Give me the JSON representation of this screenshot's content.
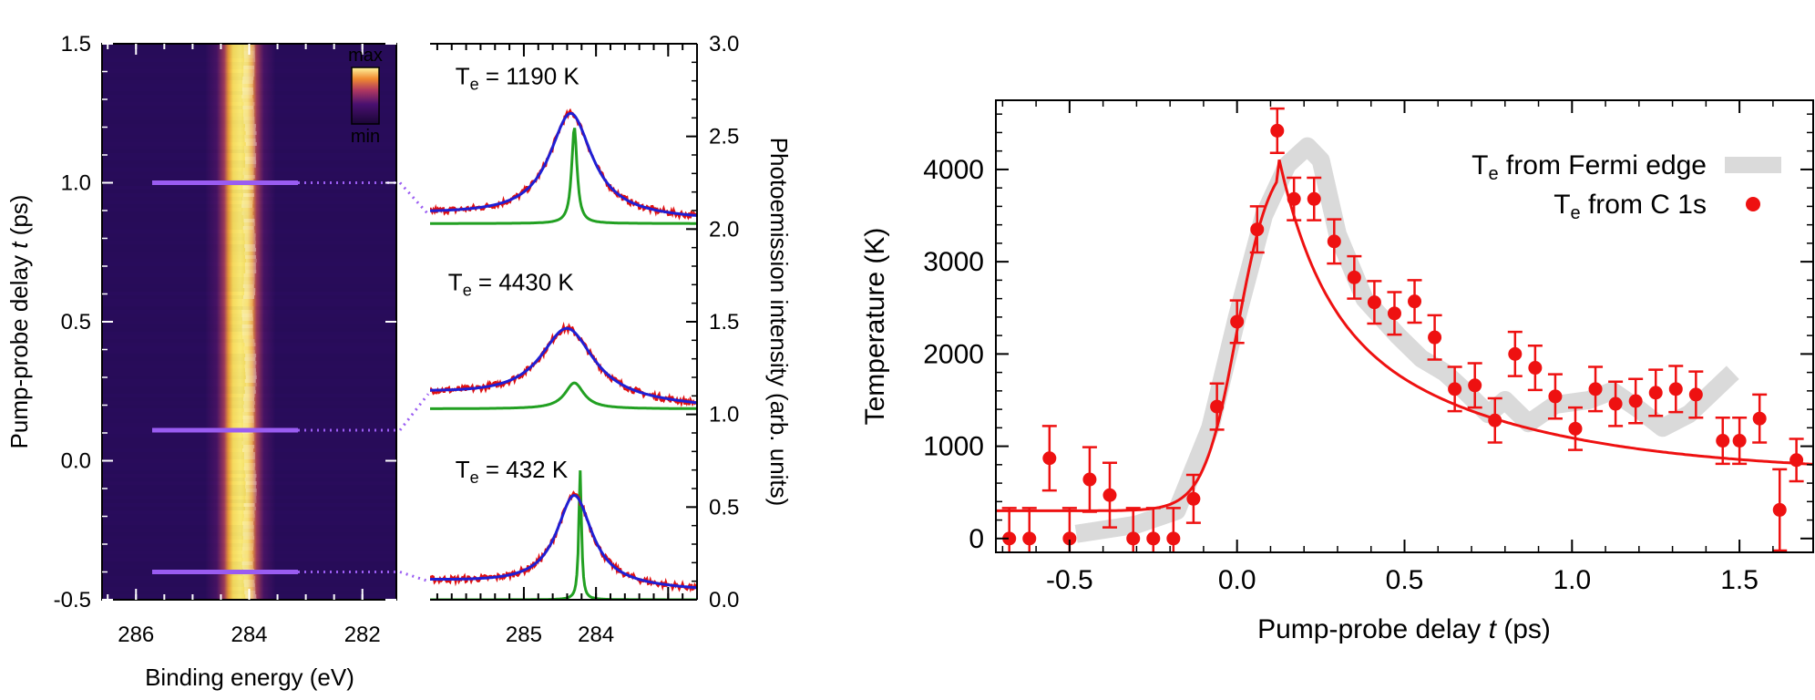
{
  "chart_data": [
    {
      "type": "heatmap",
      "xlabel": "Binding energy (eV)",
      "ylabel": "Pump-probe delay t (ps)",
      "xlim": [
        286.6,
        281.4
      ],
      "ylim": [
        -0.5,
        1.5
      ],
      "x_ticks": [
        286,
        284,
        282
      ],
      "x_tick_labels": [
        "286",
        "284",
        "282"
      ],
      "y_ticks": [
        -0.5,
        0.0,
        0.5,
        1.0,
        1.5
      ],
      "y_tick_labels": [
        "-0.5",
        "0.0",
        "0.5",
        "1.0",
        "1.5"
      ],
      "colorbar": {
        "max_label": "max",
        "min_label": "min"
      },
      "peak_center_eV": 284.0,
      "cut_delays_ps": [
        1.0,
        0.11,
        -0.4
      ],
      "colors": {
        "background": "#2a0d5e",
        "peak": "#ffec60",
        "cut_line": "#9a5cf2"
      }
    },
    {
      "type": "line",
      "ylabel": "Photoemission intensity (arb. units)",
      "xlim": [
        286.3,
        282.6
      ],
      "ylim": [
        0.0,
        3.0
      ],
      "x_ticks": [
        285,
        284,
        283
      ],
      "x_tick_labels": [
        "285",
        "284",
        ""
      ],
      "y_ticks": [
        0.0,
        0.5,
        1.0,
        1.5,
        2.0,
        2.5,
        3.0
      ],
      "y_tick_labels": [
        "0.0",
        "0.5",
        "1.0",
        "1.5",
        "2.0",
        "2.5",
        "3.0"
      ],
      "annotations": [
        "T<sub>e</sub> = 1190 K",
        "T<sub>e</sub> = 4430 K",
        "T<sub>e</sub> = 432 K"
      ],
      "annotation_parts": [
        {
          "prefix": "T",
          "sub": "e",
          "suffix": " = 1190 K"
        },
        {
          "prefix": "T",
          "sub": "e",
          "suffix": " = 4430 K"
        },
        {
          "prefix": "T",
          "sub": "e",
          "suffix": " = 432 K"
        }
      ],
      "spectra": [
        {
          "offset": 2.0,
          "bg_left": 0.08,
          "bg_right": 0.05,
          "fit_amp": 0.56,
          "fit_center": 284.35,
          "fit_gamma": 0.36,
          "narrow_amp": 0.52,
          "narrow_center": 284.3,
          "narrow_gamma": 0.045,
          "narrow_base": 0.03
        },
        {
          "offset": 1.0,
          "bg_left": 0.11,
          "bg_right": 0.04,
          "fit_amp": 0.39,
          "fit_center": 284.4,
          "fit_gamma": 0.45,
          "narrow_amp": 0.14,
          "narrow_center": 284.3,
          "narrow_gamma": 0.16,
          "narrow_base": 0.03
        },
        {
          "offset": 0.0,
          "bg_left": 0.1,
          "bg_right": 0.05,
          "fit_amp": 0.49,
          "fit_center": 284.3,
          "fit_gamma": 0.3,
          "narrow_amp": 0.7,
          "narrow_center": 284.22,
          "narrow_gamma": 0.022,
          "narrow_base": 0.0
        }
      ],
      "colors": {
        "data": "#e01010",
        "fit": "#1f1fd4",
        "component": "#22a022"
      }
    },
    {
      "type": "scatter",
      "xlabel": "Pump-probe delay t (ps)",
      "ylabel": "Temperature (K)",
      "xlim": [
        -0.72,
        1.72
      ],
      "ylim": [
        -150,
        4750
      ],
      "x_ticks": [
        -0.5,
        0.0,
        0.5,
        1.0,
        1.5
      ],
      "x_tick_labels": [
        "-0.5",
        "0.0",
        "0.5",
        "1.0",
        "1.5"
      ],
      "y_ticks": [
        0,
        1000,
        2000,
        3000,
        4000
      ],
      "y_tick_labels": [
        "0",
        "1000",
        "2000",
        "3000",
        "4000"
      ],
      "legend": [
        {
          "prefix": "T",
          "sub": "e",
          "suffix": " from Fermi edge"
        },
        {
          "prefix": "T",
          "sub": "e",
          "suffix": " from C 1s"
        }
      ],
      "legend_position": "top-right",
      "series": [
        {
          "marker": "point",
          "x": [
            -0.68,
            -0.62,
            -0.56,
            -0.5,
            -0.44,
            -0.38,
            -0.31,
            -0.25,
            -0.19,
            -0.13,
            -0.06,
            0.0,
            0.06,
            0.12,
            0.17,
            0.23,
            0.29,
            0.35,
            0.41,
            0.47,
            0.53,
            0.59,
            0.65,
            0.71,
            0.77,
            0.83,
            0.89,
            0.95,
            1.01,
            1.07,
            1.13,
            1.19,
            1.25,
            1.31,
            1.37,
            1.45,
            1.5,
            1.56,
            1.62,
            1.67
          ],
          "y": [
            0,
            0,
            870,
            0,
            640,
            470,
            0,
            0,
            0,
            430,
            1430,
            2350,
            3350,
            4420,
            3680,
            3680,
            3220,
            2830,
            2560,
            2440,
            2570,
            2180,
            1620,
            1660,
            1280,
            2000,
            1850,
            1540,
            1190,
            1620,
            1460,
            1490,
            1580,
            1620,
            1560,
            1060,
            1060,
            1300,
            310,
            850
          ],
          "err": [
            330,
            330,
            350,
            330,
            350,
            350,
            330,
            330,
            330,
            260,
            250,
            230,
            250,
            240,
            230,
            230,
            240,
            230,
            230,
            230,
            230,
            240,
            240,
            240,
            240,
            240,
            240,
            240,
            230,
            240,
            240,
            240,
            250,
            250,
            250,
            250,
            250,
            260,
            440,
            230
          ]
        },
        {
          "type": "band",
          "x": [
            -0.48,
            -0.3,
            -0.18,
            -0.08,
            0.0,
            0.08,
            0.15,
            0.21,
            0.25,
            0.3,
            0.38,
            0.48,
            0.55,
            0.62,
            0.68,
            0.75,
            0.8,
            0.87,
            0.95,
            1.05,
            1.12,
            1.2,
            1.27,
            1.35,
            1.48
          ],
          "y": [
            50,
            150,
            300,
            1200,
            2400,
            3500,
            4050,
            4250,
            4100,
            3300,
            2600,
            2200,
            1950,
            1800,
            1600,
            1350,
            1500,
            1250,
            1450,
            1500,
            1600,
            1400,
            1200,
            1350,
            1800
          ]
        }
      ],
      "fit": {
        "baseline": 300,
        "amp": 9000,
        "onset": 0.0,
        "rise": 0.05,
        "decay": 0.8,
        "k": 1.5,
        "tail_floor": 700
      },
      "colors": {
        "points": "#ee1111",
        "fit": "#ee1111",
        "band": "#dadada"
      }
    }
  ]
}
